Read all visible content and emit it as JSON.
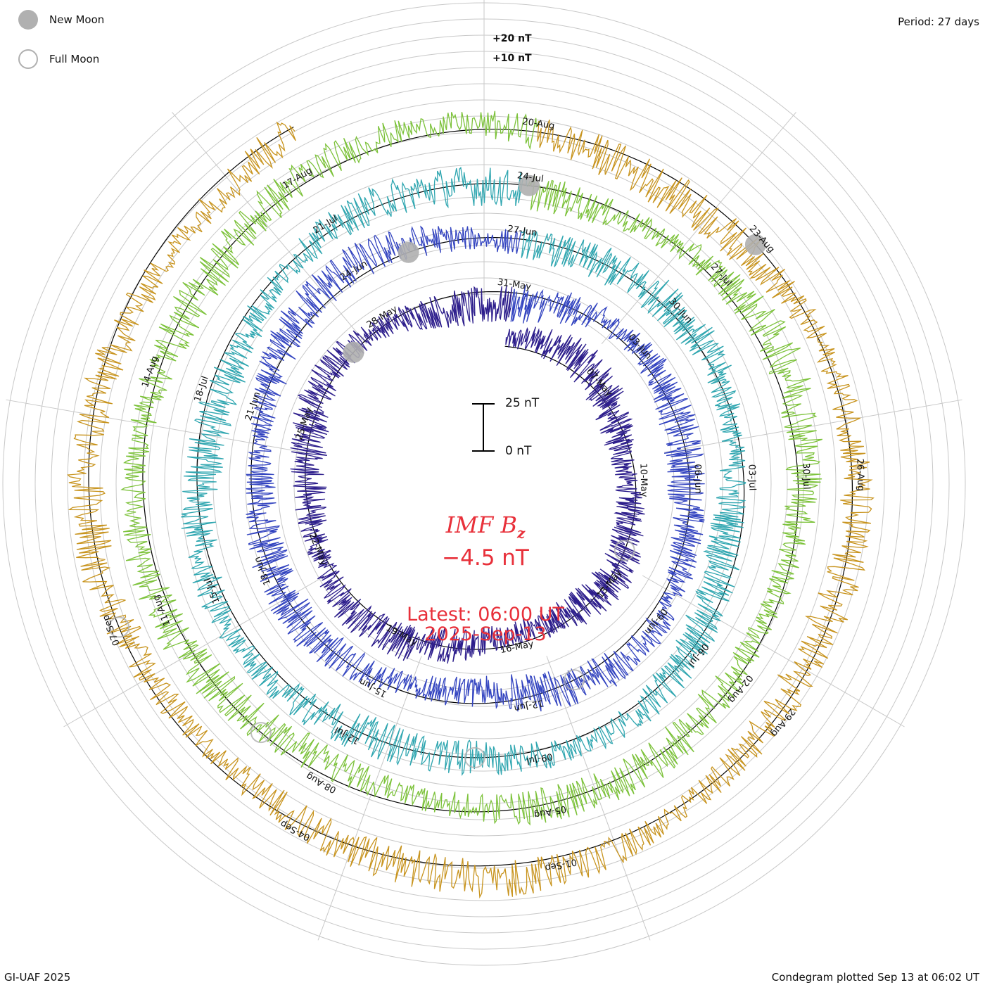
{
  "header": {
    "period_text": "Period: 27 days"
  },
  "legend": {
    "new_moon_label": "New Moon",
    "full_moon_label": "Full Moon",
    "new_moon_color": "#b0b0b0",
    "full_moon_color": "#b0b0b0"
  },
  "center": {
    "quantity_main": "IMF B",
    "quantity_sub": "z",
    "current_value": "−4.5 nT",
    "latest_label": "Latest: 06:00 UT",
    "latest_date": "2025-Sep-13",
    "text_color": "#e8303a"
  },
  "scale_bar": {
    "top_label": "25 nT",
    "bottom_label": "0 nT",
    "length_nT": 25
  },
  "ring_scale": {
    "plus20_label": "+20 nT",
    "plus10_label": "+10 nT"
  },
  "footer": {
    "credit": "GI-UAF 2025",
    "plotted_text": "Condegram plotted Sep 13 at 06:02 UT"
  },
  "chart_data": {
    "type": "line",
    "subtype": "polar-spiral-condegram",
    "quantity": "IMF Bz",
    "unit": "nT",
    "period_days": 27,
    "start_date": "2025-05-04",
    "end_date": "2025-09-13",
    "latest_value_nT": -4.5,
    "rotations": [
      {
        "start": "2025-05-04",
        "color": "#1a0f4a",
        "labels": [
          "07-May",
          "10-May"
        ]
      },
      {
        "start": "2025-05-04",
        "color": "#2d1e8c",
        "labels": [
          "13-May",
          "16-May",
          "19-May",
          "22-May",
          "25-May",
          "28-May"
        ]
      },
      {
        "start": "2025-05-31",
        "color": "#3344c0",
        "labels": [
          "31-May",
          "03-Jun",
          "06-Jun",
          "09-Jun",
          "12-Jun",
          "15-Jun",
          "18-Jun",
          "21-Jun",
          "24-Jun"
        ]
      },
      {
        "start": "2025-06-24",
        "color": "#2fa6b0",
        "labels": [
          "27-Jun",
          "30-Jun",
          "03-Jul",
          "06-Jul",
          "09-Jul",
          "12-Jul",
          "15-Jul",
          "18-Jul",
          "21-Jul"
        ]
      },
      {
        "start": "2025-07-21",
        "color": "#7cc23a",
        "labels": [
          "24-Jul",
          "27-Jul",
          "30-Jul",
          "02-Aug",
          "05-Aug",
          "08-Aug",
          "11-Aug",
          "14-Aug",
          "17-Aug"
        ]
      },
      {
        "start": "2025-08-17",
        "color": "#c8941e",
        "labels": [
          "20-Aug",
          "23-Aug",
          "26-Aug",
          "29-Aug",
          "01-Sep",
          "04-Sep",
          "07-Sep"
        ]
      },
      {
        "start": "2025-09-10",
        "color": "#c01c10",
        "labels": []
      }
    ],
    "new_moons": [
      "2025-05-27",
      "2025-06-25",
      "2025-07-24",
      "2025-08-23"
    ],
    "full_moons": [
      "2025-05-12",
      "2025-06-11",
      "2025-07-10",
      "2025-08-09",
      "2025-09-07"
    ]
  }
}
